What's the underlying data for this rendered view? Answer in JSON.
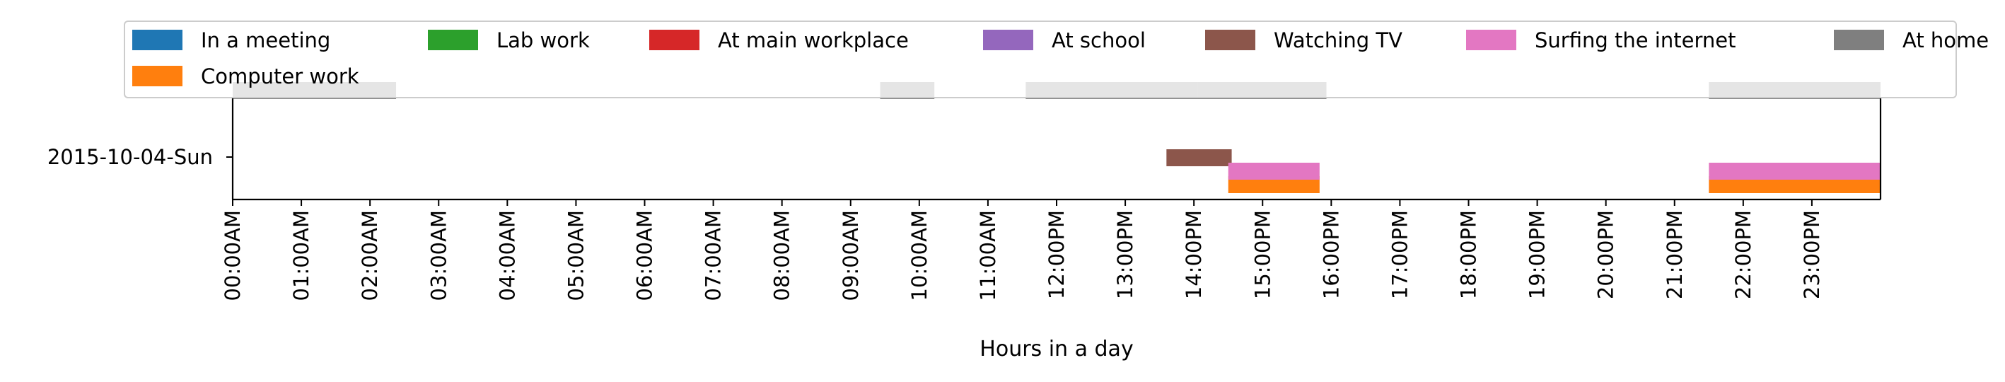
{
  "chart_data": {
    "type": "timeline",
    "title": "",
    "xlabel": "Hours in a day",
    "ylabel": "",
    "xlim": [
      0,
      24
    ],
    "grid": false,
    "legend_position": "top",
    "categories": [
      "2015-10-04-Sun"
    ],
    "x_ticks": [
      "00:00AM",
      "01:00AM",
      "02:00AM",
      "03:00AM",
      "04:00AM",
      "05:00AM",
      "06:00AM",
      "07:00AM",
      "08:00AM",
      "09:00AM",
      "10:00AM",
      "11:00AM",
      "12:00PM",
      "13:00PM",
      "14:00PM",
      "15:00PM",
      "16:00PM",
      "17:00PM",
      "18:00PM",
      "19:00PM",
      "20:00PM",
      "21:00PM",
      "22:00PM",
      "23:00PM"
    ],
    "series": [
      {
        "name": "In a meeting",
        "color": "#1f77b4",
        "lane": 6,
        "intervals": []
      },
      {
        "name": "Computer work",
        "color": "#ff7f0e",
        "lane": 0,
        "intervals": [
          [
            14.5,
            15.83
          ],
          [
            21.5,
            24.0
          ]
        ]
      },
      {
        "name": "Lab work",
        "color": "#2ca02c",
        "lane": 5,
        "intervals": []
      },
      {
        "name": "At main workplace",
        "color": "#d62728",
        "lane": 4,
        "intervals": []
      },
      {
        "name": "At school",
        "color": "#9467bd",
        "lane": 3,
        "intervals": []
      },
      {
        "name": "Watching TV",
        "color": "#8c564b",
        "lane": 2,
        "intervals": [
          [
            13.6,
            14.55
          ]
        ]
      },
      {
        "name": "Surfing the internet",
        "color": "#e377c2",
        "lane": 1,
        "intervals": [
          [
            14.5,
            15.83
          ],
          [
            21.5,
            24.0
          ]
        ]
      },
      {
        "name": "At home",
        "color": "#7f7f7f",
        "lane": 7,
        "intervals": [
          [
            0.0,
            2.38
          ],
          [
            9.43,
            10.22
          ],
          [
            11.55,
            14.05
          ],
          [
            14.05,
            15.93
          ],
          [
            21.5,
            24.0
          ]
        ]
      }
    ],
    "legend_order": [
      "In a meeting",
      "Lab work",
      "At main workplace",
      "At school",
      "Watching TV",
      "Surfing the internet",
      "At home",
      "Computer work"
    ]
  }
}
